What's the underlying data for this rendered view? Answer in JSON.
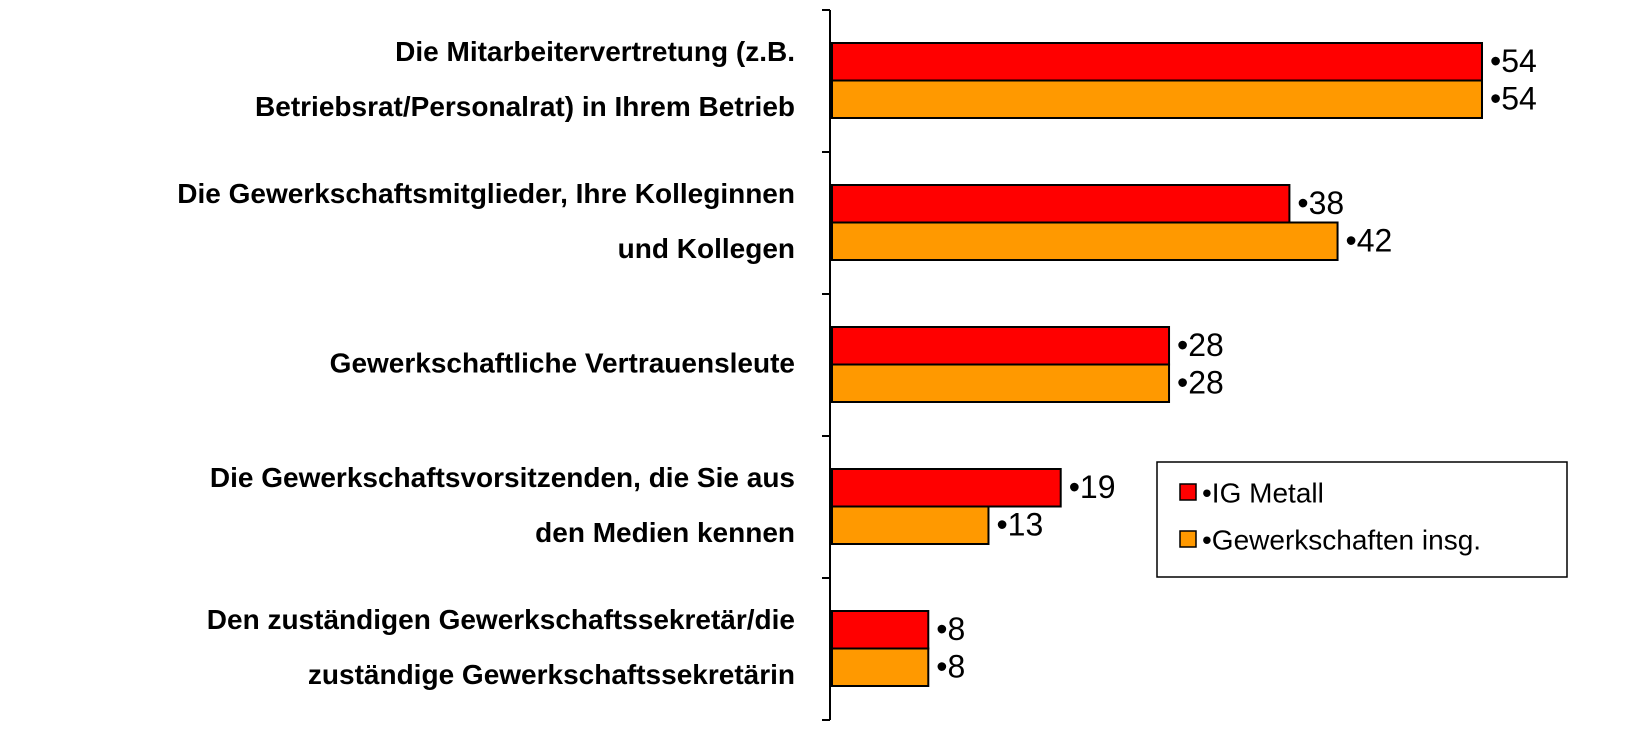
{
  "chart_data": {
    "type": "bar",
    "orientation": "horizontal",
    "categories": [
      [
        "Die Mitarbeitervertretung (z.B.",
        "Betriebsrat/Personalrat) in Ihrem Betrieb"
      ],
      [
        "Die Gewerkschaftsmitglieder, Ihre Kolleginnen",
        "und Kollegen"
      ],
      [
        "Gewerkschaftliche Vertrauensleute"
      ],
      [
        "Die Gewerkschaftsvorsitzenden, die Sie aus",
        "den Medien kennen"
      ],
      [
        "Den zuständigen Gewerkschaftssekretär/die",
        "zuständige Gewerkschaftssekretärin"
      ]
    ],
    "series": [
      {
        "name": "•IG Metall",
        "color": "#ff0000",
        "values": [
          54,
          38,
          28,
          19,
          8
        ],
        "value_labels": [
          "•54",
          "•38",
          "•28",
          "•19",
          "•8"
        ]
      },
      {
        "name": "•Gewerkschaften insg.",
        "color": "#ff9900",
        "values": [
          54,
          42,
          28,
          13,
          8
        ],
        "value_labels": [
          "•54",
          "•42",
          "•28",
          "•13",
          "•8"
        ]
      }
    ],
    "xlim": [
      0,
      60
    ],
    "legend": "lower right"
  }
}
